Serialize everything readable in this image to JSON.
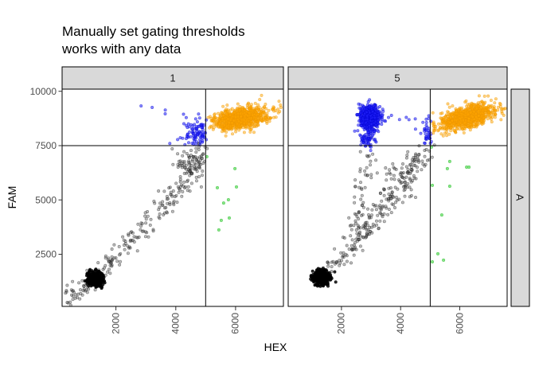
{
  "title": {
    "line1": "Manually set gating thresholds",
    "line2": "works with any data"
  },
  "axes": {
    "x_label": "HEX",
    "y_label": "FAM"
  },
  "facets": {
    "columns": [
      "1",
      "5"
    ],
    "row": "A"
  },
  "colors": {
    "background": "#FFFFFF",
    "strip_fill": "#D9D9D9",
    "strip_border": "#000000",
    "panel_border": "#000000",
    "threshold_line": "#000000",
    "tick_mark": "#333333",
    "tick_label": "#4D4D4D",
    "axis_title": "#000000",
    "title_text": "#000000",
    "orange": "#FFA500",
    "blue": "#2121FA",
    "green": "#73E173",
    "gray": "#505050",
    "black": "#000000"
  },
  "chart_data": {
    "type": "scatter",
    "title": "Manually set gating thresholds works with any data",
    "xlabel": "HEX",
    "ylabel": "FAM",
    "x_ticks": [
      2000,
      4000,
      6000
    ],
    "y_ticks": [
      2500,
      5000,
      7500,
      10000
    ],
    "x_domain": [
      200,
      7600
    ],
    "y_domain": [
      100,
      10100
    ],
    "thresholds": {
      "hex": 5000,
      "fam": 7500
    },
    "grid": false,
    "legend": "none",
    "point_radius": 1.7,
    "point_colors": {
      "gray": {
        "fill": "rgba(80,80,80,0.38)",
        "stroke": "rgba(0,0,0,0.45)"
      },
      "black": {
        "fill": "rgba(0,0,0,0.82)",
        "stroke": "rgba(0,0,0,0.9)"
      },
      "blue": {
        "fill": "rgba(33,33,250,0.55)",
        "stroke": "rgba(0,0,210,0.55)"
      },
      "orange": {
        "fill": "rgba(255,165,0,0.5)",
        "stroke": "rgba(235,150,0,0.55)"
      },
      "green": {
        "fill": "rgba(115,225,115,0.85)",
        "stroke": "rgba(80,200,80,0.9)"
      }
    },
    "panels": [
      {
        "label": "1",
        "clusters": [
          {
            "kind": "path",
            "class": "gray",
            "n": 240,
            "anchors": [
              [
                450,
                450
              ],
              [
                1300,
                1350
              ],
              [
                2860,
                3580
              ],
              [
                4190,
                5670
              ],
              [
                4950,
                7430
              ]
            ],
            "jx": 170,
            "jy": 270
          },
          {
            "kind": "gauss",
            "class": "gray",
            "n": 60,
            "cx": 4450,
            "cy": 6700,
            "sx": 300,
            "sy": 420,
            "clip": {
              "ymax": 7480,
              "xmax": 5050
            }
          },
          {
            "kind": "gauss",
            "class": "black",
            "n": 420,
            "cx": 1300,
            "cy": 1360,
            "sx": 120,
            "sy": 150
          },
          {
            "kind": "gauss",
            "class": "blue",
            "n": 130,
            "cx": 4780,
            "cy": 8100,
            "sx": 300,
            "sy": 330,
            "rho": 0.3,
            "clip": {
              "xmax": 5030,
              "ymin": 7530
            }
          },
          {
            "kind": "points",
            "class": "blue",
            "jitter": 40,
            "pts": [
              [
                2860,
                9330
              ],
              [
                3180,
                9260
              ],
              [
                3610,
                9110
              ],
              [
                3660,
                8930
              ]
            ]
          },
          {
            "kind": "gauss",
            "class": "orange",
            "n": 950,
            "cx": 6150,
            "cy": 8750,
            "sx": 430,
            "sy": 260,
            "rho": 0.35,
            "clip": {
              "xmin": 5070,
              "ymin": 7560,
              "xmax": 7550
            }
          },
          {
            "kind": "points",
            "class": "green",
            "jitter": 0,
            "pts": [
              [
                5040,
                6990
              ],
              [
                5980,
                6440
              ],
              [
                5390,
                5560
              ],
              [
                6030,
                5600
              ],
              [
                5600,
                4860
              ],
              [
                5760,
                5010
              ],
              [
                5520,
                4060
              ],
              [
                5790,
                4170
              ],
              [
                5440,
                3620
              ]
            ]
          }
        ]
      },
      {
        "label": "5",
        "clusters": [
          {
            "kind": "path",
            "class": "gray",
            "n": 210,
            "anchors": [
              [
                1400,
                1500
              ],
              [
                2300,
                2700
              ],
              [
                3500,
                4800
              ],
              [
                4900,
                7350
              ]
            ],
            "jx": 170,
            "jy": 270
          },
          {
            "kind": "path",
            "class": "gray",
            "n": 65,
            "anchors": [
              [
                2450,
                3100
              ],
              [
                2700,
                5200
              ],
              [
                2880,
                7300
              ]
            ],
            "jx": 150,
            "jy": 260
          },
          {
            "kind": "gauss",
            "class": "gray",
            "n": 40,
            "cx": 3900,
            "cy": 6100,
            "sx": 500,
            "sy": 700,
            "clip": {
              "ymax": 7450
            }
          },
          {
            "kind": "gauss",
            "class": "black",
            "n": 420,
            "cx": 1330,
            "cy": 1430,
            "sx": 130,
            "sy": 150
          },
          {
            "kind": "gauss",
            "class": "blue",
            "n": 620,
            "cx": 2950,
            "cy": 8800,
            "sx": 170,
            "sy": 260,
            "clip": {
              "ymax": 9650
            }
          },
          {
            "kind": "gauss",
            "class": "blue",
            "n": 70,
            "cx": 2880,
            "cy": 7900,
            "sx": 150,
            "sy": 280,
            "clip": {
              "ymin": 7150
            }
          },
          {
            "kind": "points",
            "class": "blue",
            "jitter": 70,
            "pts": [
              [
                3350,
                8900
              ],
              [
                3550,
                8820
              ],
              [
                3750,
                8870
              ],
              [
                3950,
                8700
              ],
              [
                4150,
                8800
              ],
              [
                4350,
                8650
              ],
              [
                4550,
                8750
              ],
              [
                4700,
                8620
              ],
              [
                4850,
                8700
              ],
              [
                3450,
                8600
              ],
              [
                4450,
                8300
              ],
              [
                4750,
                8050
              ]
            ]
          },
          {
            "kind": "path",
            "class": "blue",
            "n": 35,
            "anchors": [
              [
                4900,
                8450
              ],
              [
                4950,
                7550
              ]
            ],
            "jx": 70,
            "jy": 200,
            "clip": {
              "xmax": 5040
            }
          },
          {
            "kind": "gauss",
            "class": "orange",
            "n": 950,
            "cx": 6250,
            "cy": 8800,
            "sx": 450,
            "sy": 280,
            "rho": 0.5,
            "clip": {
              "xmin": 5070,
              "ymin": 7560,
              "xmax": 7550
            }
          },
          {
            "kind": "points",
            "class": "green",
            "jitter": 0,
            "pts": [
              [
                5040,
                7430
              ],
              [
                5660,
                6770
              ],
              [
                5580,
                6440
              ],
              [
                6230,
                6510
              ],
              [
                6310,
                6510
              ],
              [
                5070,
                5670
              ],
              [
                5660,
                5630
              ],
              [
                5390,
                4310
              ],
              [
                5260,
                2520
              ],
              [
                5450,
                2230
              ],
              [
                5070,
                2150
              ]
            ]
          }
        ]
      }
    ]
  }
}
